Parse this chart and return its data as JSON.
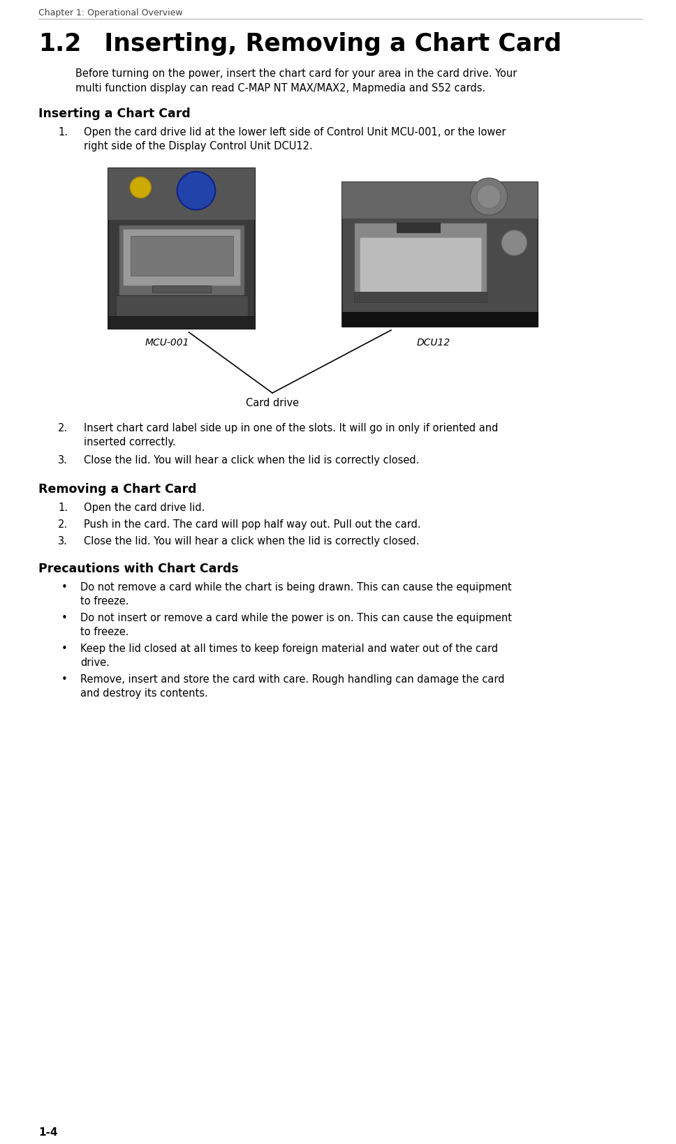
{
  "page_header": "Chapter 1: Operational Overview",
  "page_number": "1-4",
  "section_number": "1.2",
  "section_title": "  Inserting, Removing a Chart Card",
  "intro_lines": [
    "Before turning on the power, insert the chart card for your area in the card drive. Your",
    "multi function display can read C-MAP NT MAX/MAX2, Mapmedia and S52 cards."
  ],
  "subsection1": "Inserting a Chart Card",
  "insert_step1_lines": [
    "Open the card drive lid at the lower left side of Control Unit MCU-001, or the lower",
    "right side of the Display Control Unit DCU12."
  ],
  "insert_step2_lines": [
    "Insert chart card label side up in one of the slots. It will go in only if oriented and",
    "inserted correctly."
  ],
  "insert_step3_lines": [
    "Close the lid. You will hear a click when the lid is correctly closed."
  ],
  "subsection2": "Removing a Chart Card",
  "remove_steps": [
    [
      "Open the card drive lid."
    ],
    [
      "Push in the card. The card will pop half way out. Pull out the card."
    ],
    [
      "Close the lid. You will hear a click when the lid is correctly closed."
    ]
  ],
  "subsection3": "Precautions with Chart Cards",
  "precautions": [
    [
      "Do not remove a card while the chart is being drawn. This can cause the equipment",
      "to freeze."
    ],
    [
      "Do not insert or remove a card while the power is on. This can cause the equipment",
      "to freeze."
    ],
    [
      "Keep the lid closed at all times to keep foreign material and water out of the card",
      "drive."
    ],
    [
      "Remove, insert and store the card with care. Rough handling can damage the card",
      "and destroy its contents."
    ]
  ],
  "label_mcu": "MCU-001",
  "label_dcu": "DCU12",
  "label_card_drive": "Card drive",
  "bg_color": "#ffffff"
}
